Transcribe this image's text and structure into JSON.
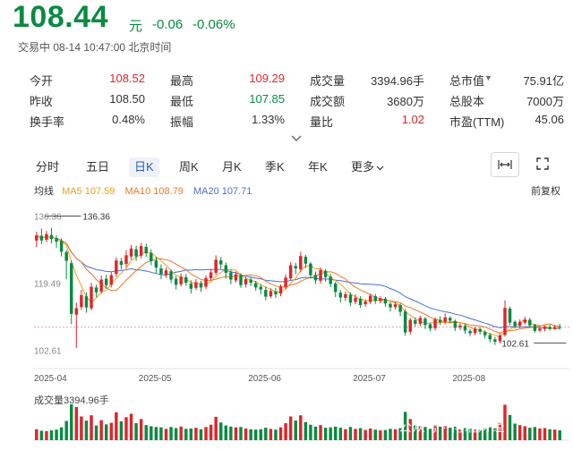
{
  "header": {
    "price": "108.44",
    "unit": "元",
    "change": "-0.06",
    "change_pct": "-0.06%",
    "status": "交易中  08-14 10:47:00 北京时间"
  },
  "stats": [
    {
      "label": "今开",
      "value": "108.52",
      "color": "#e0252b"
    },
    {
      "label": "最高",
      "value": "109.29",
      "color": "#e0252b"
    },
    {
      "label": "成交量",
      "value": "3394.96手",
      "color": "#333333"
    },
    {
      "label": "总市值",
      "value": "75.91亿",
      "color": "#333333"
    },
    {
      "label": "昨收",
      "value": "108.50",
      "color": "#333333"
    },
    {
      "label": "最低",
      "value": "107.85",
      "color": "#0a8a43"
    },
    {
      "label": "成交额",
      "value": "3680万",
      "color": "#333333"
    },
    {
      "label": "总股本",
      "value": "7000万",
      "color": "#333333"
    },
    {
      "label": "换手率",
      "value": "0.48%",
      "color": "#333333"
    },
    {
      "label": "振幅",
      "value": "1.33%",
      "color": "#333333"
    },
    {
      "label": "量比",
      "value": "1.02",
      "color": "#e0252b"
    },
    {
      "label": "市盈(TTM)",
      "value": "45.06",
      "color": "#333333"
    }
  ],
  "tabs": [
    "分时",
    "五日",
    "日K",
    "周K",
    "月K",
    "季K",
    "年K",
    "更多"
  ],
  "active_tab": "日K",
  "ma": {
    "label": "均线",
    "ma5": "MA5 107.59",
    "ma10": "MA10 108.79",
    "ma20": "MA20 107.71",
    "ma5_color": "#f0a020",
    "ma10_color": "#e87a2a",
    "ma20_color": "#4a6fd0"
  },
  "restore_label": "前复权",
  "volume_label": "成交量3394.96手",
  "watermark": "公众号 · 博瑞财经",
  "icons": {
    "expand": "chevron-down-icon",
    "fit": "fit-width-icon",
    "fullscreen": "fullscreen-icon"
  },
  "colors": {
    "up": "#e0252b",
    "down": "#0a8a43"
  },
  "chart_data": {
    "type": "candlestick",
    "y_ticks": [
      "136.36",
      "119.49",
      "102.61"
    ],
    "x_ticks": [
      "2025-04",
      "2025-05",
      "2025-06",
      "2025-07",
      "2025-08"
    ],
    "high_annotation": "136.36",
    "low_annotation": "102.61",
    "ylim": [
      102.61,
      136.36
    ],
    "candles": [
      [
        130.2,
        131.5,
        128.5,
        132.4
      ],
      [
        131.4,
        130.2,
        129.3,
        133.2
      ],
      [
        130.4,
        131.8,
        129.8,
        132.6
      ],
      [
        131.6,
        130.6,
        129.5,
        133.4
      ],
      [
        130.8,
        129.9,
        128.4,
        131.5
      ],
      [
        130.1,
        127.4,
        126.2,
        130.8
      ],
      [
        127.3,
        125.1,
        120.5,
        127.8
      ],
      [
        124.5,
        111.8,
        109.2,
        125.2
      ],
      [
        111.6,
        113.2,
        103.2,
        114.6
      ],
      [
        113.5,
        116.5,
        112.8,
        117.8
      ],
      [
        116.2,
        113.4,
        112.1,
        117.2
      ],
      [
        113.2,
        118.6,
        112.7,
        119.6
      ],
      [
        118.4,
        117.2,
        116.0,
        119.1
      ],
      [
        117.4,
        120.4,
        116.9,
        121.4
      ],
      [
        120.6,
        119.0,
        118.1,
        121.6
      ],
      [
        119.1,
        121.5,
        118.4,
        122.3
      ],
      [
        121.8,
        125.2,
        121.1,
        125.9
      ],
      [
        125.0,
        124.1,
        122.9,
        125.8
      ],
      [
        124.3,
        126.5,
        123.4,
        127.8
      ],
      [
        126.2,
        128.2,
        125.4,
        129.1
      ],
      [
        128.0,
        126.2,
        125.1,
        128.9
      ],
      [
        126.4,
        128.8,
        125.7,
        129.6
      ],
      [
        128.6,
        127.0,
        126.1,
        129.4
      ],
      [
        127.1,
        125.0,
        124.0,
        128.0
      ],
      [
        125.2,
        123.4,
        122.0,
        126.1
      ],
      [
        123.2,
        121.8,
        120.5,
        124.2
      ],
      [
        121.6,
        122.7,
        120.8,
        123.4
      ],
      [
        122.5,
        120.4,
        119.5,
        123.0
      ],
      [
        120.6,
        119.1,
        117.9,
        121.3
      ],
      [
        119.2,
        121.1,
        118.6,
        121.9
      ],
      [
        121.0,
        119.6,
        118.8,
        121.8
      ],
      [
        119.4,
        118.1,
        116.9,
        120.2
      ],
      [
        118.3,
        119.7,
        117.8,
        120.5
      ],
      [
        119.5,
        118.4,
        117.3,
        120.1
      ],
      [
        118.6,
        120.8,
        118.0,
        121.4
      ],
      [
        120.7,
        122.2,
        120.1,
        123.1
      ],
      [
        122.1,
        125.4,
        121.6,
        126.5
      ],
      [
        125.2,
        124.2,
        123.1,
        126.0
      ],
      [
        124.0,
        122.1,
        120.6,
        124.7
      ],
      [
        122.2,
        120.4,
        119.2,
        122.8
      ],
      [
        120.2,
        121.7,
        119.6,
        122.4
      ],
      [
        121.5,
        119.0,
        118.3,
        122.0
      ],
      [
        119.2,
        120.5,
        118.4,
        121.1
      ],
      [
        120.4,
        119.6,
        118.8,
        121.0
      ],
      [
        119.5,
        118.4,
        117.6,
        120.1
      ],
      [
        118.6,
        117.9,
        116.7,
        119.3
      ],
      [
        117.8,
        116.1,
        115.2,
        118.6
      ],
      [
        116.2,
        117.5,
        115.7,
        118.2
      ],
      [
        117.4,
        116.7,
        115.8,
        118.3
      ],
      [
        116.9,
        118.6,
        116.2,
        119.2
      ],
      [
        118.5,
        120.9,
        118.0,
        121.7
      ],
      [
        120.7,
        124.0,
        120.3,
        124.8
      ],
      [
        123.8,
        123.2,
        121.8,
        124.6
      ],
      [
        123.0,
        126.3,
        122.2,
        127.4
      ],
      [
        126.1,
        124.4,
        123.3,
        126.6
      ],
      [
        124.4,
        121.5,
        120.6,
        124.8
      ],
      [
        121.6,
        120.2,
        119.3,
        122.4
      ],
      [
        120.1,
        122.8,
        119.4,
        123.5
      ],
      [
        122.6,
        121.0,
        119.9,
        123.0
      ],
      [
        121.1,
        119.3,
        118.5,
        121.8
      ],
      [
        119.4,
        117.3,
        116.0,
        119.8
      ],
      [
        117.1,
        115.9,
        114.6,
        117.8
      ],
      [
        115.8,
        116.7,
        115.0,
        117.4
      ],
      [
        116.6,
        114.6,
        113.7,
        117.2
      ],
      [
        114.8,
        115.8,
        114.2,
        116.7
      ],
      [
        115.6,
        114.0,
        113.3,
        116.2
      ],
      [
        114.2,
        114.9,
        113.6,
        115.4
      ],
      [
        114.8,
        116.3,
        114.2,
        116.9
      ],
      [
        116.2,
        115.0,
        114.3,
        116.8
      ],
      [
        115.0,
        115.7,
        114.4,
        116.2
      ],
      [
        115.6,
        114.4,
        113.6,
        116.0
      ],
      [
        114.3,
        113.4,
        112.4,
        114.8
      ],
      [
        113.5,
        114.2,
        112.9,
        114.8
      ],
      [
        114.0,
        112.3,
        111.2,
        114.4
      ],
      [
        112.4,
        107.1,
        106.3,
        113.0
      ],
      [
        107.3,
        110.3,
        106.6,
        110.8
      ],
      [
        110.2,
        109.3,
        108.6,
        110.9
      ],
      [
        109.3,
        110.8,
        108.7,
        111.3
      ],
      [
        110.6,
        109.0,
        108.0,
        111.0
      ],
      [
        109.2,
        108.1,
        107.4,
        109.6
      ],
      [
        108.2,
        110.4,
        107.6,
        110.9
      ],
      [
        110.3,
        109.7,
        109.0,
        111.2
      ],
      [
        109.8,
        110.9,
        109.2,
        111.9
      ],
      [
        110.8,
        110.1,
        109.4,
        111.2
      ],
      [
        110.0,
        108.3,
        107.5,
        110.4
      ],
      [
        108.4,
        108.9,
        107.7,
        109.4
      ],
      [
        108.8,
        107.6,
        106.8,
        109.2
      ],
      [
        107.5,
        106.9,
        106.2,
        108.0
      ],
      [
        107.0,
        108.1,
        106.4,
        108.6
      ],
      [
        108.0,
        107.3,
        106.6,
        108.5
      ],
      [
        107.2,
        106.4,
        105.6,
        107.7
      ],
      [
        106.5,
        105.4,
        104.7,
        107.0
      ],
      [
        105.4,
        104.8,
        104.0,
        106.0
      ],
      [
        104.9,
        106.4,
        104.4,
        107.0
      ],
      [
        106.5,
        113.3,
        106.1,
        115.2
      ],
      [
        113.1,
        109.6,
        108.9,
        113.6
      ],
      [
        109.8,
        108.7,
        108.1,
        110.2
      ],
      [
        108.8,
        109.8,
        108.2,
        110.4
      ],
      [
        109.6,
        110.4,
        109.1,
        111.1
      ],
      [
        110.3,
        108.9,
        108.3,
        110.8
      ],
      [
        109.0,
        107.5,
        107.1,
        109.3
      ],
      [
        107.6,
        108.1,
        107.2,
        108.6
      ],
      [
        108.0,
        108.5,
        107.4,
        108.9
      ],
      [
        108.5,
        108.0,
        107.6,
        109.1
      ],
      [
        108.0,
        108.5,
        107.8,
        109.0
      ],
      [
        108.5,
        108.44,
        107.85,
        109.29
      ]
    ],
    "volume": [
      2.9,
      2.5,
      2.4,
      2.6,
      2.8,
      3.4,
      5.1,
      9.5,
      8.8,
      6.3,
      5.2,
      6.6,
      3.9,
      5.3,
      4.2,
      4.6,
      7.4,
      5.0,
      6.1,
      7.0,
      4.5,
      5.6,
      4.0,
      3.7,
      3.5,
      3.4,
      3.0,
      3.5,
      3.2,
      3.6,
      3.0,
      3.1,
      3.3,
      2.9,
      3.5,
      4.1,
      6.2,
      4.7,
      3.9,
      3.6,
      3.4,
      3.5,
      3.1,
      2.9,
      2.8,
      2.9,
      3.3,
      3.0,
      2.8,
      3.4,
      4.5,
      6.3,
      5.2,
      6.6,
      4.8,
      4.1,
      3.6,
      4.0,
      3.3,
      3.4,
      3.6,
      3.3,
      2.9,
      3.5,
      3.0,
      3.2,
      2.7,
      3.1,
      2.8,
      2.6,
      2.7,
      3.0,
      2.9,
      3.2,
      7.5,
      5.6,
      3.9,
      3.7,
      3.5,
      3.2,
      4.0,
      3.6,
      3.7,
      3.3,
      3.6,
      3.0,
      3.2,
      3.1,
      2.9,
      2.7,
      3.1,
      3.4,
      3.2,
      4.6,
      9.4,
      6.7,
      4.4,
      4.0,
      3.7,
      3.3,
      3.5,
      3.1,
      3.2,
      2.9,
      2.8,
      2.6
    ],
    "ma5": [],
    "ma10": [],
    "ma20": []
  }
}
